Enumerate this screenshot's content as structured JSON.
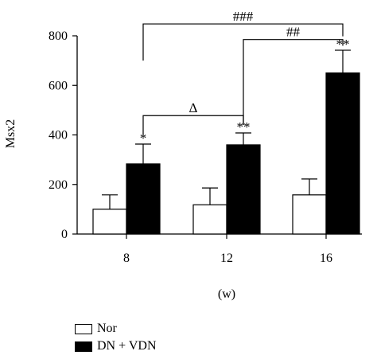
{
  "chart_data": {
    "type": "bar",
    "ylabel": "Msx2",
    "xlabel": "(w)",
    "categories": [
      "8",
      "12",
      "16"
    ],
    "ylim": [
      0,
      800
    ],
    "yticks": [
      "0",
      "200",
      "400",
      "600",
      "800"
    ],
    "series": [
      {
        "name": "Nor",
        "color": "#ffffff",
        "values": [
          100,
          118,
          158
        ],
        "errors": [
          58,
          68,
          64
        ]
      },
      {
        "name": "DN + VDN",
        "color": "#000000",
        "values": [
          283,
          360,
          650
        ],
        "errors": [
          80,
          48,
          92
        ]
      }
    ],
    "bar_annotations": [
      "*",
      "**",
      "**"
    ],
    "comparisons": [
      {
        "from": "8",
        "to": "12",
        "label": "Δ"
      },
      {
        "from": "12",
        "to": "16",
        "label": "##"
      },
      {
        "from": "8",
        "to": "16",
        "label": "###"
      }
    ]
  }
}
